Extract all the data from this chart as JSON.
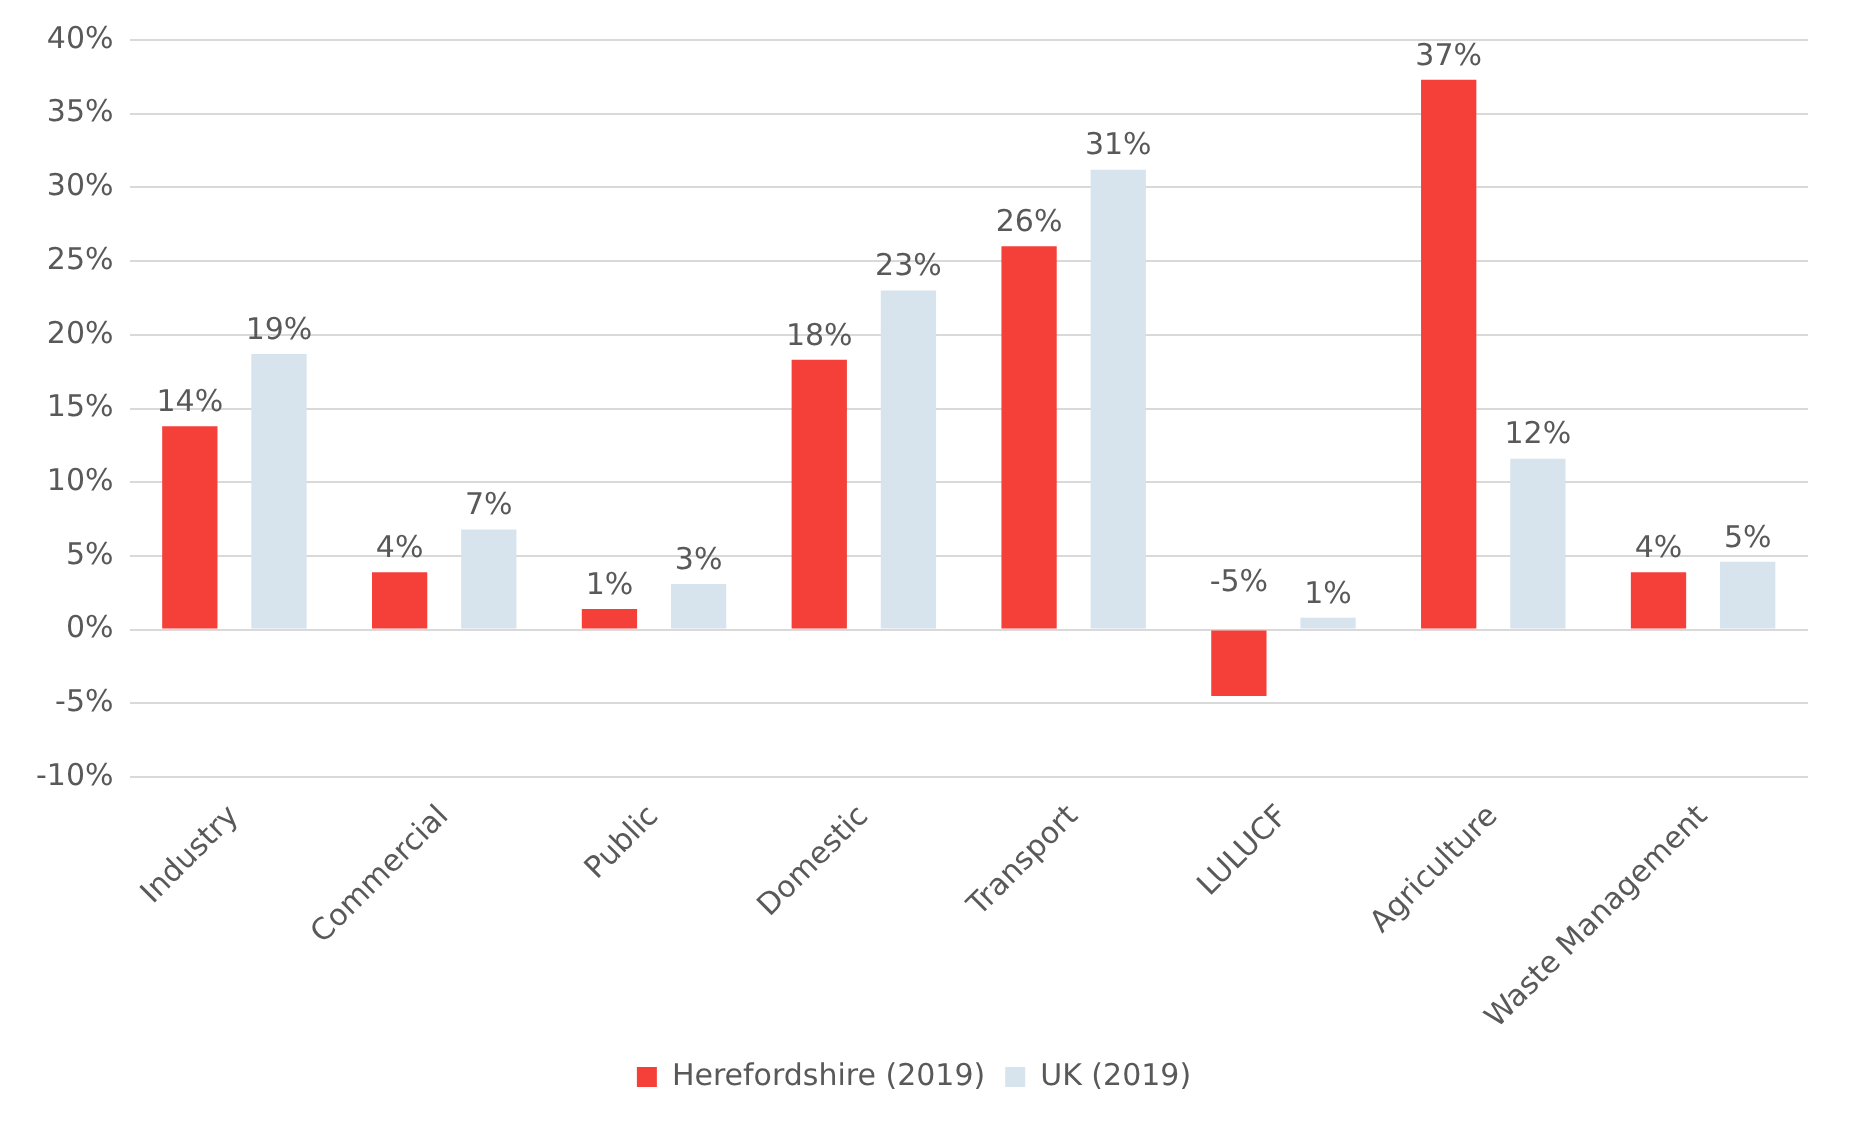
{
  "chart_data": {
    "type": "bar",
    "categories": [
      "Industry",
      "Commercial",
      "Public",
      "Domestic",
      "Transport",
      "LULUCF",
      "Agriculture",
      "Waste Management"
    ],
    "series": [
      {
        "name": "Herefordshire (2019)",
        "color": "#f5403a",
        "values": [
          13.8,
          3.9,
          1.4,
          18.3,
          26,
          -4.5,
          37.3,
          3.9
        ],
        "value_labels": [
          "14%",
          "4%",
          "1%",
          "18%",
          "26%",
          "-5%",
          "37%",
          "4%"
        ]
      },
      {
        "name": "UK (2019)",
        "color": "#d7e4ee",
        "values": [
          18.7,
          6.8,
          3.1,
          23,
          31.2,
          0.8,
          11.6,
          4.6
        ],
        "value_labels": [
          "19%",
          "7%",
          "3%",
          "23%",
          "31%",
          "1%",
          "12%",
          "5%"
        ]
      }
    ],
    "ylim": [
      -10,
      40
    ],
    "yticks": [
      {
        "value": -10,
        "label": "-10%"
      },
      {
        "value": -5,
        "label": "-5%"
      },
      {
        "value": 0,
        "label": "0%"
      },
      {
        "value": 5,
        "label": "5%"
      },
      {
        "value": 10,
        "label": "10%"
      },
      {
        "value": 15,
        "label": "15%"
      },
      {
        "value": 20,
        "label": "20%"
      },
      {
        "value": 25,
        "label": "25%"
      },
      {
        "value": 30,
        "label": "30%"
      },
      {
        "value": 35,
        "label": "35%"
      },
      {
        "value": 40,
        "label": "40%"
      }
    ],
    "grid": "y",
    "legend": "bottom"
  }
}
